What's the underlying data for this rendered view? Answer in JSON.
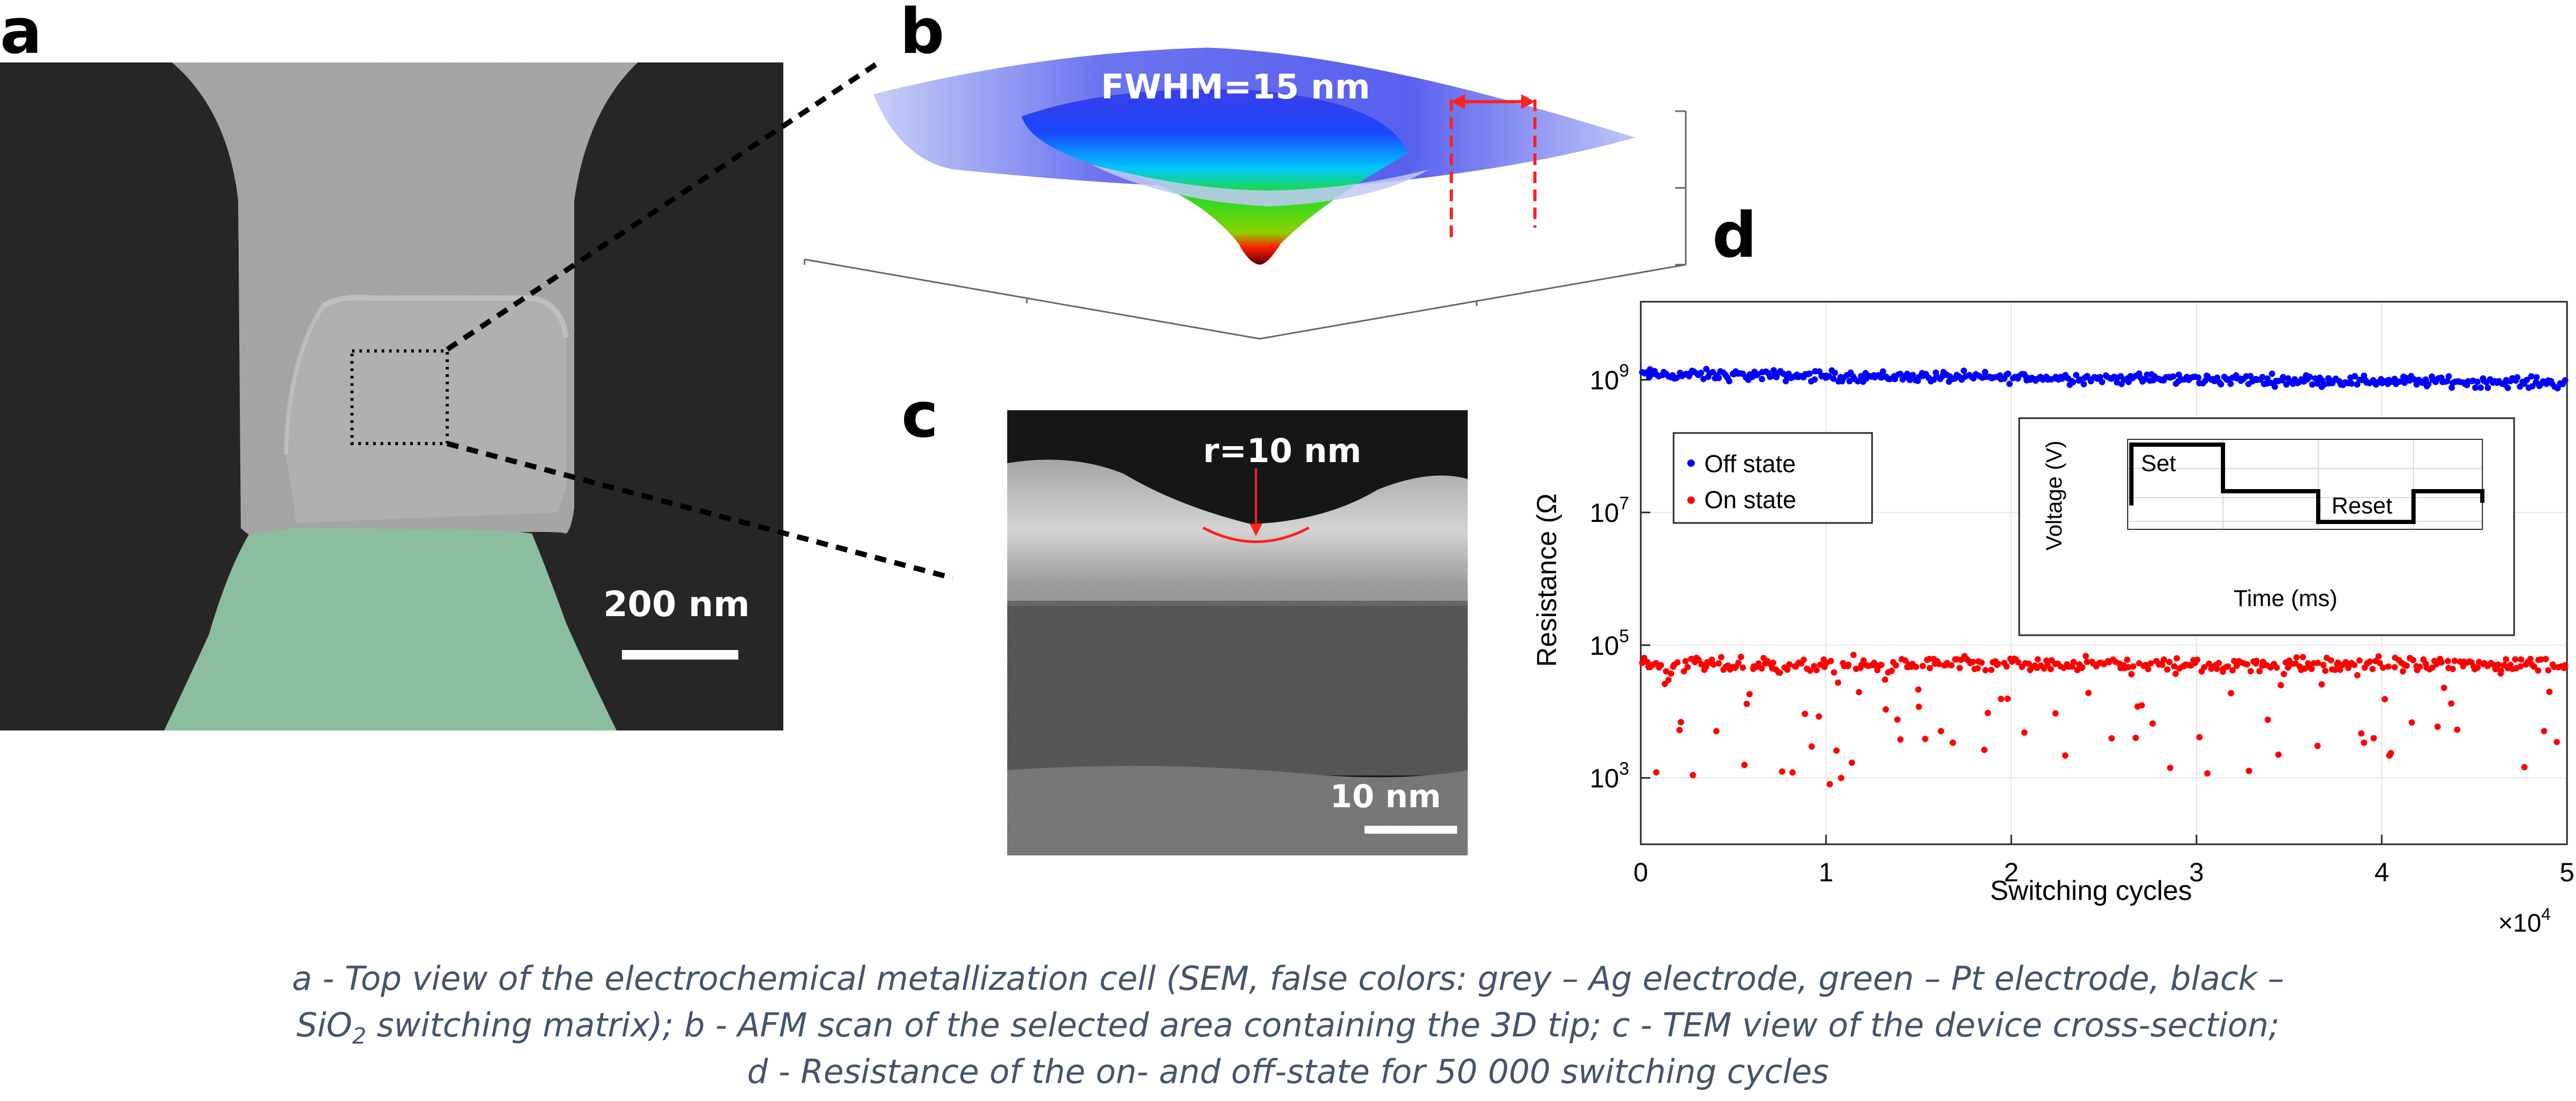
{
  "panels": {
    "a": {
      "letter": "a",
      "scalebar_label": "200 nm"
    },
    "b": {
      "letter": "b",
      "fwhm_label": "FWHM=15 nm"
    },
    "c": {
      "letter": "c",
      "radius_label": "r=10 nm",
      "scalebar_label": "10 nm"
    },
    "d": {
      "letter": "d"
    }
  },
  "chart_data": {
    "type": "scatter",
    "xlabel": "Switching cycles",
    "ylabel": "Resistance (Ω",
    "x_multiplier": "×10",
    "x_multiplier_exp": "4",
    "xlim": [
      0,
      5
    ],
    "xticks": [
      "0",
      "1",
      "2",
      "3",
      "4",
      "5"
    ],
    "ylim": [
      100,
      15000000000
    ],
    "yscale": "log",
    "yticks": [
      {
        "base": "10",
        "exp": "3",
        "value": 1000
      },
      {
        "base": "10",
        "exp": "5",
        "value": 100000
      },
      {
        "base": "10",
        "exp": "7",
        "value": 10000000
      },
      {
        "base": "10",
        "exp": "9",
        "value": 1000000000
      }
    ],
    "grid": true,
    "legend_position": "top-left",
    "series": [
      {
        "name": "Off state",
        "color": "#0000ff",
        "typical_value": 1200000000
      },
      {
        "name": "On state",
        "color": "#ff0000",
        "typical_value": 50000
      }
    ],
    "inset": {
      "xlabel": "Time (ms)",
      "ylabel": "Voltage (V)",
      "annotations": [
        "Set",
        "Reset"
      ]
    }
  },
  "caption": {
    "line1": "a - Top view of the electrochemical metallization cell (SEM, false colors: grey – Ag electrode, green – Pt electrode, black –",
    "line2_pre": "SiO",
    "line2_sub": "2",
    "line2_post": " switching matrix); b - AFM scan of the selected area containing the 3D tip; c - TEM view of the device cross-section;",
    "line3": "d - Resistance of the on- and off-state for 50 000 switching cycles"
  },
  "colors": {
    "ag_electrode": "#a9aaa8",
    "pt_electrode": "#8fc3a2",
    "sio2": "#262626",
    "annotation_red": "#ff2020",
    "caption_text": "#44546a"
  }
}
